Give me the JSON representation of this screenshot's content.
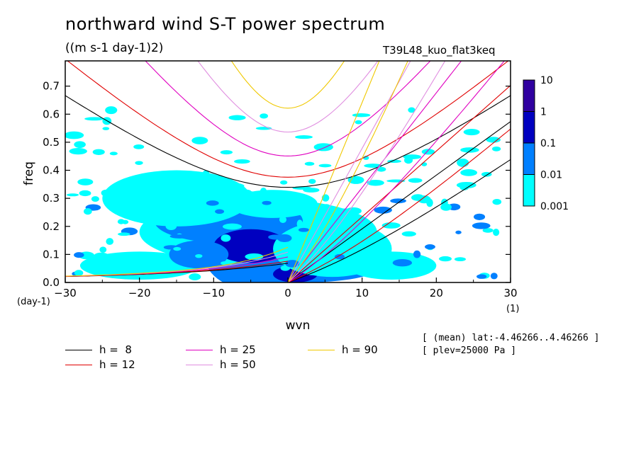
{
  "title": "northward wind S-T power spectrum",
  "subtitle": "((m s-1 day-1)2)",
  "run_label": "T39L48_kuo_flat3keq",
  "notes": [
    "[ (mean) lat:-4.46266..4.46266 ]",
    "[ plev=25000 Pa ]"
  ],
  "chart_data": {
    "type": "heatmap",
    "xlabel": "wvn",
    "ylabel": "freq",
    "x_unit": "(1)",
    "y_unit": "(day-1)",
    "xlim": [
      -30,
      30
    ],
    "ylim": [
      0,
      0.79
    ],
    "xticks": [
      "-30",
      "-20",
      "-10",
      "0",
      "10",
      "20",
      "30"
    ],
    "yticks": [
      "0.0",
      "0.1",
      "0.2",
      "0.3",
      "0.4",
      "0.5",
      "0.6",
      "0.7"
    ],
    "colorbar": {
      "levels": [
        "0.001",
        "0.01",
        "0.1",
        "1",
        "10"
      ],
      "colors": [
        "#00ffff",
        "#0080ff",
        "#0000c0",
        "#3000a0"
      ]
    },
    "dispersion_curves": [
      {
        "label": "h =  8",
        "h": 8,
        "color": "#000000"
      },
      {
        "label": "h = 12",
        "h": 12,
        "color": "#e00000"
      },
      {
        "label": "h = 25",
        "h": 25,
        "color": "#e000c0"
      },
      {
        "label": "h = 50",
        "h": 50,
        "color": "#e08ee0"
      },
      {
        "label": "h = 90",
        "h": 90,
        "color": "#f0c800"
      }
    ],
    "spectrum_blobs": [
      {
        "x": -2,
        "y": 0.08,
        "rx": 9,
        "ry": 0.12,
        "level": 1
      },
      {
        "x": -4,
        "y": 0.18,
        "rx": 16,
        "ry": 0.12,
        "level": 0
      },
      {
        "x": 2,
        "y": 0.05,
        "rx": 10,
        "ry": 0.05,
        "level": 1
      },
      {
        "x": -8,
        "y": 0.22,
        "rx": 10,
        "ry": 0.08,
        "level": 1
      },
      {
        "x": -5,
        "y": 0.13,
        "rx": 5,
        "ry": 0.06,
        "level": 2
      },
      {
        "x": 1,
        "y": 0.03,
        "rx": 3,
        "ry": 0.03,
        "level": 2
      },
      {
        "x": -15,
        "y": 0.3,
        "rx": 10,
        "ry": 0.1,
        "level": 0
      },
      {
        "x": 6,
        "y": 0.12,
        "rx": 8,
        "ry": 0.1,
        "level": 0
      },
      {
        "x": -20,
        "y": 0.06,
        "rx": 8,
        "ry": 0.05,
        "level": 0
      },
      {
        "x": 14,
        "y": 0.06,
        "rx": 6,
        "ry": 0.05,
        "level": 0
      },
      {
        "x": -2,
        "y": 0.28,
        "rx": 6,
        "ry": 0.05,
        "level": 0
      },
      {
        "x": -12,
        "y": 0.1,
        "rx": 4,
        "ry": 0.05,
        "level": 1
      }
    ]
  },
  "legend_layout": [
    [
      0,
      2,
      4
    ],
    [
      1,
      3
    ]
  ]
}
